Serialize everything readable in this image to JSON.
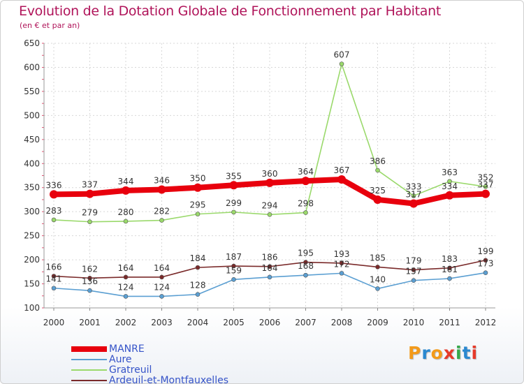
{
  "title": "Evolution de la Dotation Globale de Fonctionnement par Habitant",
  "subtitle": "(en € et par an)",
  "logo_text": "Proxiti",
  "logo_colors": [
    "#f39a1a",
    "#2a88d0",
    "#f39a1a",
    "#e63a2a",
    "#35a84a",
    "#2a88d0",
    "#e63a2a"
  ],
  "chart_data": {
    "type": "line",
    "x": [
      "2000",
      "2001",
      "2002",
      "2003",
      "2004",
      "2005",
      "2006",
      "2007",
      "2008",
      "2009",
      "2010",
      "2011",
      "2012"
    ],
    "ylim": [
      100,
      650
    ],
    "yticks": [
      "100",
      "150",
      "200",
      "250",
      "300",
      "350",
      "400",
      "450",
      "500",
      "550",
      "600",
      "650"
    ],
    "grid": true,
    "legend_position": "bottom-left",
    "series": [
      {
        "name": "MANRE",
        "color": "#e8000d",
        "values": [
          336,
          337,
          344,
          346,
          350,
          355,
          360,
          364,
          367,
          325,
          317,
          334,
          337
        ],
        "labels": [
          "336",
          "337",
          "344",
          "346",
          "350",
          "355",
          "360",
          "364",
          "367",
          "325",
          "317",
          "334",
          "337"
        ]
      },
      {
        "name": "Aure",
        "color": "#5b9fd2",
        "values": [
          141,
          136,
          124,
          124,
          128,
          159,
          164,
          168,
          172,
          140,
          157,
          161,
          173
        ],
        "labels": [
          "141",
          "136",
          "124",
          "124",
          "128",
          "159",
          "164",
          "168",
          "172",
          "140",
          "157",
          "161",
          "173"
        ]
      },
      {
        "name": "Gratreuil",
        "color": "#9ad96b",
        "values": [
          283,
          279,
          280,
          282,
          295,
          299,
          294,
          298,
          607,
          386,
          333,
          363,
          352
        ],
        "labels": [
          "283",
          "279",
          "280",
          "282",
          "295",
          "299",
          "294",
          "298",
          "607",
          "386",
          "333",
          "363",
          "352"
        ]
      },
      {
        "name": "Ardeuil-et-Montfauxelles",
        "color": "#7a2a2a",
        "values": [
          166,
          162,
          164,
          164,
          184,
          187,
          186,
          195,
          193,
          185,
          179,
          183,
          199
        ],
        "labels": [
          "166",
          "162",
          "164",
          "164",
          "184",
          "187",
          "186",
          "195",
          "193",
          "185",
          "179",
          "183",
          "199"
        ]
      }
    ]
  }
}
